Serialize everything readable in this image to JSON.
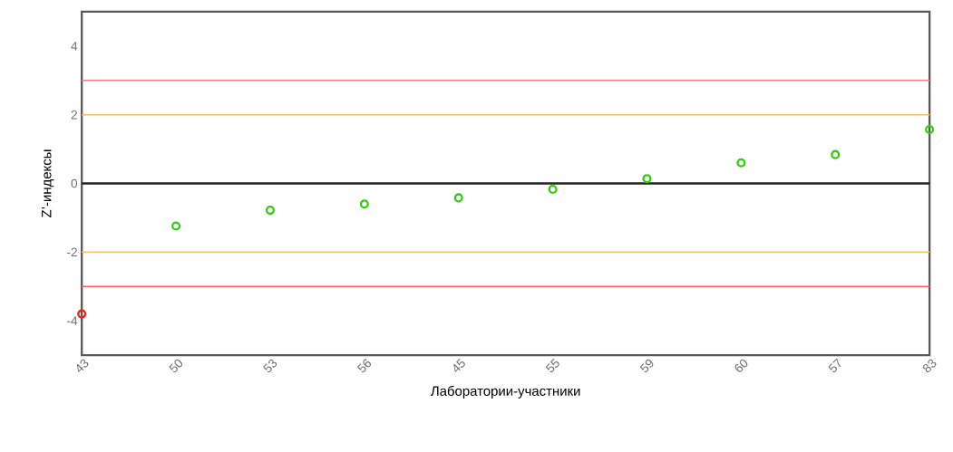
{
  "chart_data": {
    "type": "scatter",
    "xlabel": "Лаборатории-участники",
    "ylabel": "Z’-индексы",
    "categories": [
      "43",
      "50",
      "53",
      "56",
      "45",
      "55",
      "59",
      "60",
      "57",
      "83"
    ],
    "values": [
      -3.8,
      -1.24,
      -0.78,
      -0.6,
      -0.42,
      -0.17,
      0.14,
      0.6,
      0.84,
      1.57
    ],
    "colors": [
      "#ff1a1a",
      "#33cc11",
      "#33cc11",
      "#33cc11",
      "#33cc11",
      "#33cc11",
      "#33cc11",
      "#33cc11",
      "#33cc11",
      "#33cc11"
    ],
    "marker": "circle",
    "ylim": [
      -5,
      5
    ],
    "yticks": [
      -4,
      -2,
      0,
      2,
      4
    ],
    "grid": false,
    "ref_lines": [
      {
        "axis": "y",
        "value": 3,
        "color": "#ff8080"
      },
      {
        "axis": "y",
        "value": 2,
        "color": "#ffc455"
      },
      {
        "axis": "y",
        "value": 0,
        "color": "#222222"
      },
      {
        "axis": "y",
        "value": -2,
        "color": "#ffc455"
      },
      {
        "axis": "y",
        "value": -3,
        "color": "#ff6060"
      }
    ]
  }
}
